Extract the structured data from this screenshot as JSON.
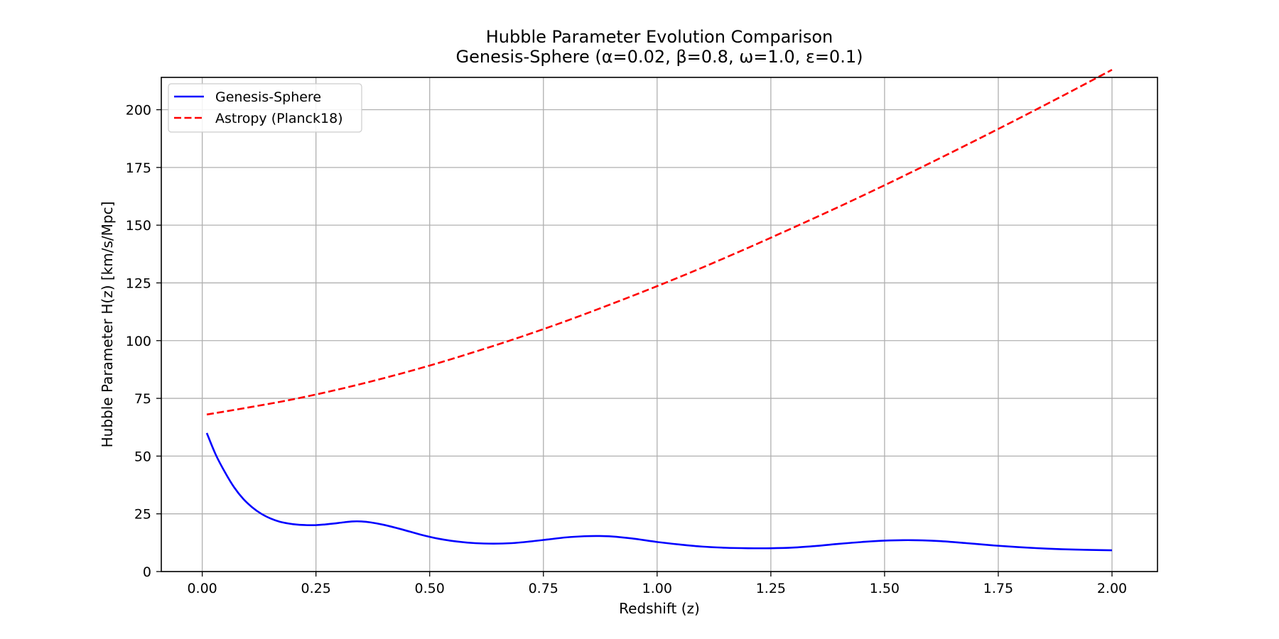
{
  "chart_data": {
    "type": "line",
    "title": "Hubble Parameter Evolution Comparison",
    "subtitle": "Genesis-Sphere (α=0.02, β=0.8, ω=1.0, ε=0.1)",
    "xlabel": "Redshift (z)",
    "ylabel": "Hubble Parameter H(z) [km/s/Mpc]",
    "xlim": [
      -0.09,
      2.1
    ],
    "ylim": [
      0,
      214
    ],
    "xticks": [
      0.0,
      0.25,
      0.5,
      0.75,
      1.0,
      1.25,
      1.5,
      1.75,
      2.0
    ],
    "xtick_labels": [
      "0.00",
      "0.25",
      "0.50",
      "0.75",
      "1.00",
      "1.25",
      "1.50",
      "1.75",
      "2.00"
    ],
    "yticks": [
      0,
      25,
      50,
      75,
      100,
      125,
      150,
      175,
      200
    ],
    "ytick_labels": [
      "0",
      "25",
      "50",
      "75",
      "100",
      "125",
      "150",
      "175",
      "200"
    ],
    "grid": true,
    "legend_position": "top-left",
    "series": [
      {
        "name": "Genesis-Sphere",
        "color": "#0000ff",
        "style": "solid",
        "x": [
          0.01,
          0.03,
          0.05,
          0.07,
          0.09,
          0.11,
          0.13,
          0.15,
          0.17,
          0.19,
          0.21,
          0.23,
          0.25,
          0.27,
          0.29,
          0.31,
          0.33,
          0.35,
          0.37,
          0.4,
          0.44,
          0.48,
          0.52,
          0.56,
          0.6,
          0.64,
          0.68,
          0.72,
          0.76,
          0.8,
          0.84,
          0.87,
          0.9,
          0.95,
          1.0,
          1.05,
          1.1,
          1.15,
          1.2,
          1.25,
          1.3,
          1.35,
          1.4,
          1.45,
          1.5,
          1.56,
          1.62,
          1.68,
          1.74,
          1.8,
          1.86,
          1.92,
          2.0
        ],
        "y": [
          60.0,
          50.5,
          43.0,
          36.5,
          31.5,
          27.8,
          25.0,
          23.0,
          21.6,
          20.8,
          20.3,
          20.1,
          20.1,
          20.4,
          20.8,
          21.3,
          21.7,
          21.7,
          21.3,
          20.2,
          18.2,
          16.0,
          14.2,
          13.0,
          12.3,
          12.1,
          12.3,
          13.0,
          13.9,
          14.8,
          15.3,
          15.4,
          15.2,
          14.2,
          12.8,
          11.7,
          10.8,
          10.3,
          10.1,
          10.1,
          10.4,
          11.1,
          12.0,
          12.8,
          13.4,
          13.6,
          13.2,
          12.3,
          11.3,
          10.5,
          9.9,
          9.5,
          9.2
        ]
      },
      {
        "name": "Astropy (Planck18)",
        "color": "#ff0000",
        "style": "dashed",
        "x": [
          0.01,
          0.1,
          0.2,
          0.3,
          0.4,
          0.5,
          0.6,
          0.7,
          0.8,
          0.9,
          1.0,
          1.1,
          1.2,
          1.3,
          1.4,
          1.5,
          1.6,
          1.7,
          1.8,
          1.9,
          2.0
        ],
        "y": [
          68.0,
          71.0,
          74.6,
          78.9,
          83.8,
          89.2,
          95.2,
          101.6,
          108.5,
          115.9,
          123.6,
          131.7,
          140.2,
          149.0,
          158.0,
          167.3,
          176.9,
          186.7,
          196.7,
          206.9,
          217.3
        ]
      }
    ]
  }
}
